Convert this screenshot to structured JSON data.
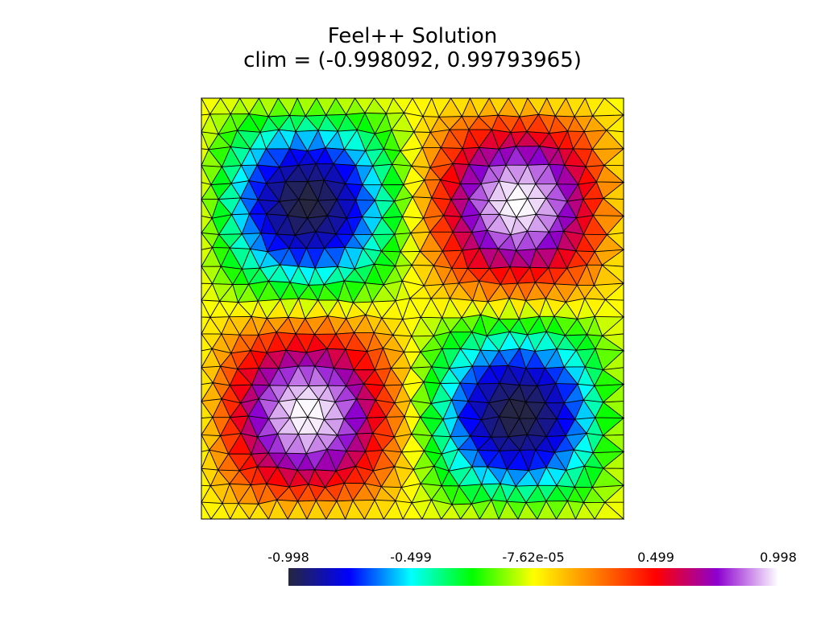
{
  "title": {
    "line1": "Feel++ Solution",
    "line2": "clim = (-0.998092, 0.99793965)"
  },
  "colorbar": {
    "min": -0.998,
    "max": 0.998,
    "tick_labels": [
      "-0.998",
      "-0.499",
      "-7.62e-05",
      "0.499",
      "0.998"
    ],
    "colormap_stops": [
      "#262640",
      "#0000ff",
      "#00ffff",
      "#00ff00",
      "#ffff00",
      "#ff8000",
      "#ff0000",
      "#8c00d0",
      "#ffffff"
    ]
  },
  "field": {
    "function": "-sin(2*pi*x)*sin(2*pi*y)",
    "domain": [
      0,
      1
    ],
    "mesh_color": "#000000",
    "boundary_value_color": "#c8c800"
  }
}
